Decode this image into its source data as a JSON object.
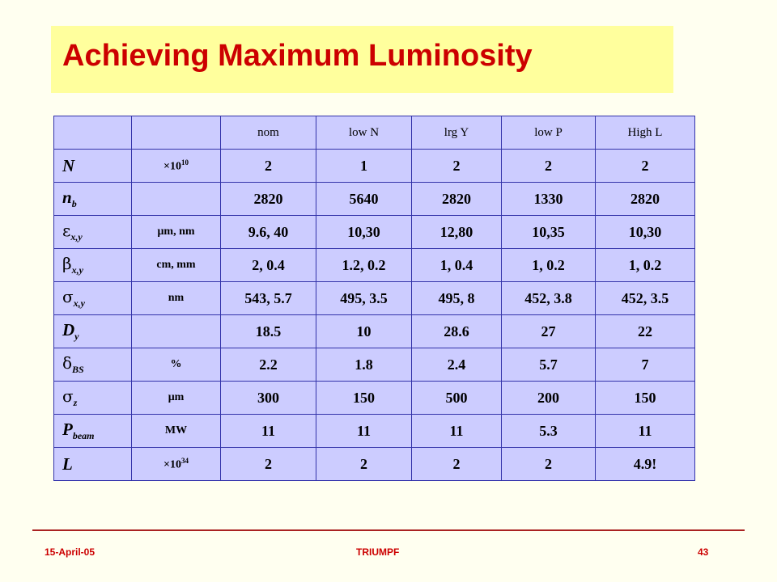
{
  "title": "Achieving Maximum Luminosity",
  "table": {
    "headers": [
      "nom",
      "low N",
      "lrg Y",
      "low P",
      "High L"
    ],
    "rows": [
      {
        "symbol": "N",
        "sub": "",
        "unit": "×10",
        "unit_sup": "10",
        "values": [
          "2",
          "1",
          "2",
          "2",
          "2"
        ]
      },
      {
        "symbol": "n",
        "sub": "b",
        "unit": "",
        "unit_sup": "",
        "values": [
          "2820",
          "5640",
          "2820",
          "1330",
          "2820"
        ]
      },
      {
        "symbol": "ε",
        "sub": "x,y",
        "unit": "μm, nm",
        "unit_sup": "",
        "values": [
          "9.6, 40",
          "10,30",
          "12,80",
          "10,35",
          "10,30"
        ]
      },
      {
        "symbol": "β",
        "sub": "x,y",
        "unit": "cm, mm",
        "unit_sup": "",
        "values": [
          "2, 0.4",
          "1.2, 0.2",
          "1, 0.4",
          "1, 0.2",
          "1, 0.2"
        ]
      },
      {
        "symbol": "σ",
        "sub": "x,y",
        "unit": "nm",
        "unit_sup": "",
        "values": [
          "543, 5.7",
          "495, 3.5",
          "495, 8",
          "452, 3.8",
          "452, 3.5"
        ]
      },
      {
        "symbol": "D",
        "sub": "y",
        "unit": "",
        "unit_sup": "",
        "values": [
          "18.5",
          "10",
          "28.6",
          "27",
          "22"
        ]
      },
      {
        "symbol": "δ",
        "sub": "BS",
        "unit": "%",
        "unit_sup": "",
        "values": [
          "2.2",
          "1.8",
          "2.4",
          "5.7",
          "7"
        ]
      },
      {
        "symbol": "σ",
        "sub": "z",
        "unit": "μm",
        "unit_sup": "",
        "values": [
          "300",
          "150",
          "500",
          "200",
          "150"
        ]
      },
      {
        "symbol": "P",
        "sub": "beam",
        "unit": "MW",
        "unit_sup": "",
        "values": [
          "11",
          "11",
          "11",
          "5.3",
          "11"
        ]
      },
      {
        "symbol": "L",
        "sub": "",
        "unit": "×10",
        "unit_sup": "34",
        "values": [
          "2",
          "2",
          "2",
          "2",
          "4.9!"
        ]
      }
    ]
  },
  "footer": {
    "date": "15-April-05",
    "org": "TRIUMPF",
    "page": "43"
  },
  "colors": {
    "background": "#fffff0",
    "title_box": "#ffff9d",
    "title_text": "#cc0000",
    "table_fill": "#ccccff",
    "table_border": "#3333aa",
    "footer_text": "#cc0000"
  }
}
